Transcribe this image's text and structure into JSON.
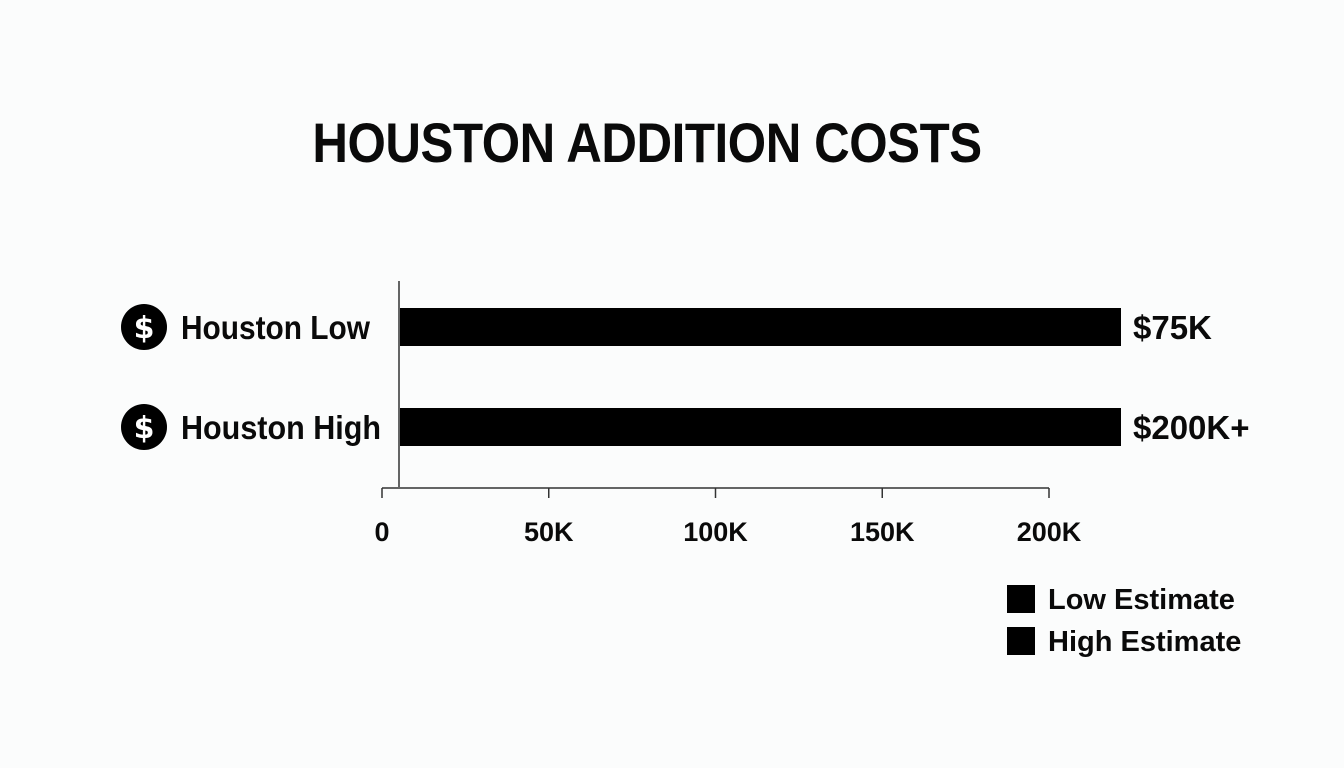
{
  "chart_data": {
    "type": "bar",
    "orientation": "horizontal",
    "title": "HOUSTON ADDITION COSTS",
    "categories": [
      "Houston Low",
      "Houston High"
    ],
    "category_icon": "dollar-icon",
    "values": [
      75000,
      200000
    ],
    "value_labels": [
      "$75K",
      "$200K+"
    ],
    "xlim": [
      0,
      200000
    ],
    "x_ticks": [
      0,
      50000,
      100000,
      150000,
      200000
    ],
    "x_tick_labels": [
      "0",
      "50K",
      "100K",
      "150K",
      "200K"
    ],
    "legend": {
      "placement": "bottom-right",
      "entries": [
        "Low Estimate",
        "High Estimate"
      ]
    },
    "grid": false,
    "colors": {
      "bar": "#000000",
      "axis": "#333333",
      "background": "#fbfcfc"
    }
  }
}
